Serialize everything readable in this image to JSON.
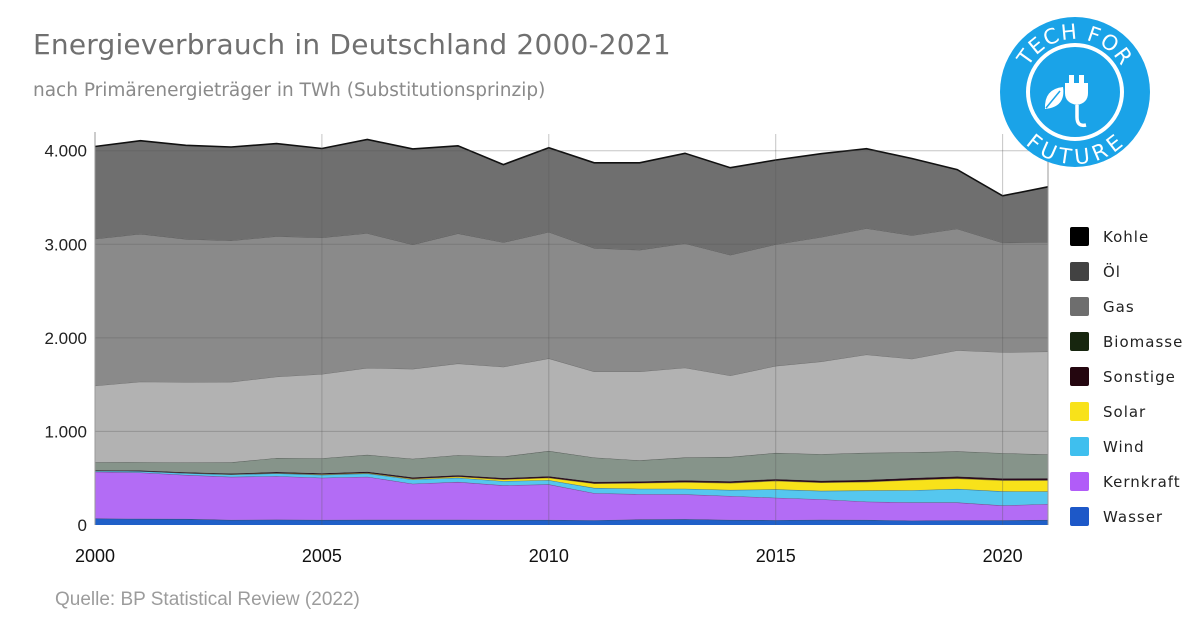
{
  "title": "Energieverbrauch in Deutschland 2000-2021",
  "subtitle": "nach Primärenergieträger in TWh (Substitutionsprinzip)",
  "source": "Quelle: BP Statistical Review (2022)",
  "logo": {
    "text_top": "TECH FOR",
    "text_bottom": "FUTURE",
    "color": "#1aa3e8",
    "icon": "plug-leaf-icon"
  },
  "chart_data": {
    "type": "area",
    "stacked": true,
    "years": [
      2000,
      2001,
      2002,
      2003,
      2004,
      2005,
      2006,
      2007,
      2008,
      2009,
      2010,
      2011,
      2012,
      2013,
      2014,
      2015,
      2016,
      2017,
      2018,
      2019,
      2020,
      2021
    ],
    "ylim": [
      0,
      4200
    ],
    "y_ticks": [
      0,
      1000,
      2000,
      3000,
      4000
    ],
    "y_tick_labels": [
      "0",
      "1.000",
      "2.000",
      "3.000",
      "4.000"
    ],
    "x_ticks": [
      2000,
      2005,
      2010,
      2015,
      2020
    ],
    "x_tick_labels": [
      "2000",
      "2005",
      "2010",
      "2015",
      "2020"
    ],
    "grid": true,
    "legend_position": "right",
    "series": [
      {
        "name": "Wasser",
        "color": "#2060c8",
        "values": [
          70,
          66,
          65,
          55,
          58,
          55,
          56,
          56,
          56,
          54,
          55,
          51,
          60,
          63,
          55,
          52,
          56,
          55,
          47,
          51,
          50,
          54
        ]
      },
      {
        "name": "Kernkraft",
        "color": "#b36cf5",
        "values": [
          500,
          495,
          470,
          460,
          465,
          450,
          460,
          385,
          405,
          370,
          380,
          290,
          270,
          265,
          255,
          240,
          220,
          195,
          195,
          190,
          160,
          170
        ]
      },
      {
        "name": "Wind",
        "color": "#55c7ef",
        "values": [
          10,
          15,
          20,
          25,
          30,
          32,
          35,
          45,
          45,
          45,
          45,
          56,
          58,
          60,
          65,
          90,
          90,
          120,
          130,
          145,
          150,
          135
        ]
      },
      {
        "name": "Solar",
        "color": "#f8e21a",
        "values": [
          0,
          0,
          1,
          2,
          3,
          5,
          6,
          9,
          11,
          18,
          26,
          47,
          61,
          71,
          75,
          90,
          88,
          92,
          110,
          112,
          118,
          120
        ]
      },
      {
        "name": "Sonstige",
        "color": "#2a0a1c",
        "values": [
          5,
          6,
          7,
          8,
          10,
          12,
          13,
          14,
          15,
          15,
          16,
          17,
          17,
          18,
          18,
          19,
          19,
          20,
          20,
          20,
          20,
          20
        ]
      },
      {
        "name": "Biomasse",
        "color": "#86948a",
        "values": [
          85,
          90,
          105,
          120,
          150,
          160,
          180,
          200,
          215,
          230,
          270,
          260,
          225,
          245,
          260,
          280,
          285,
          290,
          275,
          270,
          270,
          255
        ]
      },
      {
        "name": "Gas",
        "color": "#b2b2b2",
        "values": [
          820,
          860,
          860,
          860,
          870,
          900,
          930,
          960,
          980,
          960,
          990,
          920,
          950,
          960,
          870,
          930,
          990,
          1050,
          1000,
          1080,
          1080,
          1100
        ]
      },
      {
        "name": "Öl",
        "color": "#8a8a8a",
        "values": [
          1570,
          1580,
          1530,
          1510,
          1500,
          1460,
          1440,
          1330,
          1390,
          1330,
          1350,
          1320,
          1300,
          1330,
          1290,
          1300,
          1330,
          1350,
          1320,
          1300,
          1170,
          1170
        ]
      },
      {
        "name": "Kohle",
        "color": "#6f6f6f",
        "values": [
          985,
          995,
          1000,
          1000,
          990,
          950,
          1000,
          1020,
          935,
          830,
          900,
          910,
          930,
          960,
          930,
          900,
          890,
          850,
          820,
          630,
          500,
          590
        ]
      }
    ],
    "legend_order": [
      "Kohle",
      "Öl",
      "Gas",
      "Biomasse",
      "Sonstige",
      "Solar",
      "Wind",
      "Kernkraft",
      "Wasser"
    ],
    "legend_colors": {
      "Kohle": "#000000",
      "Öl": "#424242",
      "Gas": "#6e6e6e",
      "Biomasse": "#17260f",
      "Sonstige": "#24060f",
      "Solar": "#f8e21a",
      "Wind": "#3fbfee",
      "Kernkraft": "#b15cf8",
      "Wasser": "#1d58c8"
    }
  }
}
